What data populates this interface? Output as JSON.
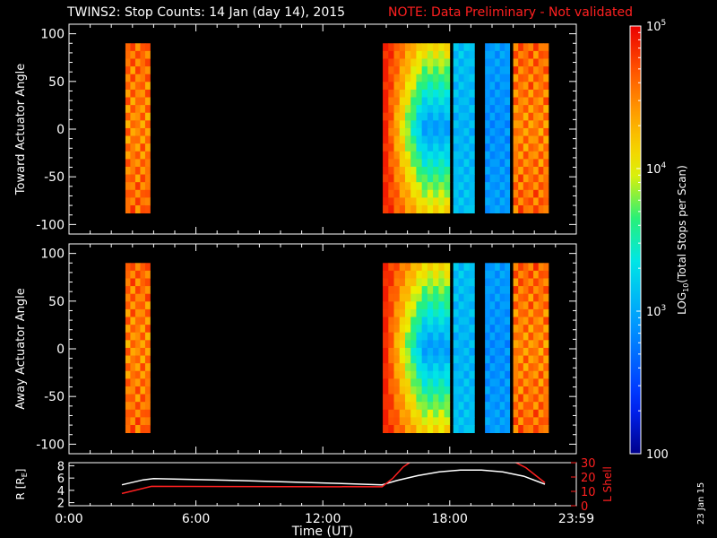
{
  "header": {
    "title": "TWINS2: Stop Counts: 14 Jan (day  14), 2015",
    "note": "NOTE: Data Preliminary - Not validated",
    "date_stamp": "23 Jan 15"
  },
  "colors": {
    "background": "#000000",
    "foreground": "#ffffff",
    "note": "#ff2020",
    "r_trace": "#ffffff",
    "l_shell_trace": "#ff2020"
  },
  "chart_data": [
    {
      "type": "heatmap",
      "ylabel": "Toward Actuator Angle",
      "ylim": [
        -110,
        110
      ],
      "yticks": [
        100,
        50,
        0,
        -50,
        -100
      ],
      "angle_range": [
        -88,
        90
      ],
      "time_range_hours": [
        0,
        23.983
      ],
      "color_scale": "log",
      "blocks": [
        {
          "start": "02:40",
          "end": "03:50",
          "level_range": [
            4.2,
            4.9
          ]
        },
        {
          "start": "14:50",
          "end": "18:00",
          "level_range": [
            2.9,
            4.9
          ]
        },
        {
          "start": "18:10",
          "end": "19:10",
          "level_range": [
            2.9,
            3.3
          ]
        },
        {
          "start": "19:40",
          "end": "20:50",
          "level_range": [
            2.7,
            3.1
          ]
        },
        {
          "start": "21:00",
          "end": "22:40",
          "level_range": [
            4.2,
            4.9
          ]
        }
      ]
    },
    {
      "type": "heatmap",
      "ylabel": "Away Actuator Angle",
      "ylim": [
        -110,
        110
      ],
      "yticks": [
        100,
        50,
        0,
        -50,
        -100
      ],
      "angle_range": [
        -88,
        90
      ],
      "time_range_hours": [
        0,
        23.983
      ],
      "color_scale": "log",
      "blocks": [
        {
          "start": "02:40",
          "end": "03:50",
          "level_range": [
            4.2,
            4.9
          ]
        },
        {
          "start": "14:50",
          "end": "18:00",
          "level_range": [
            2.9,
            4.9
          ]
        },
        {
          "start": "18:10",
          "end": "19:10",
          "level_range": [
            2.9,
            3.3
          ]
        },
        {
          "start": "19:40",
          "end": "20:50",
          "level_range": [
            2.7,
            3.1
          ]
        },
        {
          "start": "21:00",
          "end": "22:40",
          "level_range": [
            4.2,
            4.9
          ]
        }
      ]
    },
    {
      "type": "line",
      "xlabel": "Time (UT)",
      "ylabel": "R [R",
      "ylabel_sub": "E",
      "ylabel_close": "]",
      "ylim": [
        1.5,
        8.5
      ],
      "yticks": [
        2,
        4,
        6,
        8
      ],
      "y2label": "L Shell",
      "y2lim": [
        0,
        30
      ],
      "y2ticks": [
        0,
        10,
        20,
        30
      ],
      "xticks": [
        {
          "hours": 0,
          "label": "0:00"
        },
        {
          "hours": 6,
          "label": "6:00"
        },
        {
          "hours": 12,
          "label": "12:00"
        },
        {
          "hours": 18,
          "label": "18:00"
        },
        {
          "hours": 23.983,
          "label": "23:59"
        }
      ],
      "series": [
        {
          "name": "R",
          "axis": "left",
          "x": [
            2.5,
            3.5,
            4.0,
            8.0,
            12.0,
            14.8,
            15.5,
            16.5,
            17.5,
            18.5,
            19.5,
            20.5,
            21.5,
            22.5
          ],
          "y": [
            4.9,
            5.7,
            5.9,
            5.6,
            5.2,
            4.9,
            5.6,
            6.4,
            7.0,
            7.3,
            7.3,
            7.0,
            6.3,
            5.0
          ]
        },
        {
          "name": "L Shell",
          "axis": "right",
          "x": [
            2.5,
            3.9,
            14.8,
            15.3,
            15.8,
            16.2,
            21.0,
            21.6,
            22.5
          ],
          "y": [
            8.5,
            13.5,
            13.2,
            19.0,
            27.0,
            31.0,
            31.0,
            26.5,
            16.0
          ]
        }
      ]
    },
    {
      "type": "colorbar",
      "label_prefix": "LOG",
      "label_sub": "10",
      "label_suffix": "(Total Stops per Scan)",
      "scale": "log",
      "min": 100,
      "max": 100000,
      "ticks": [
        {
          "value": 100000,
          "base": "10",
          "exp": "5"
        },
        {
          "value": 10000,
          "base": "10",
          "exp": "4"
        },
        {
          "value": 1000,
          "base": "10",
          "exp": "3"
        },
        {
          "value": 100,
          "base": "100",
          "exp": ""
        }
      ]
    }
  ]
}
